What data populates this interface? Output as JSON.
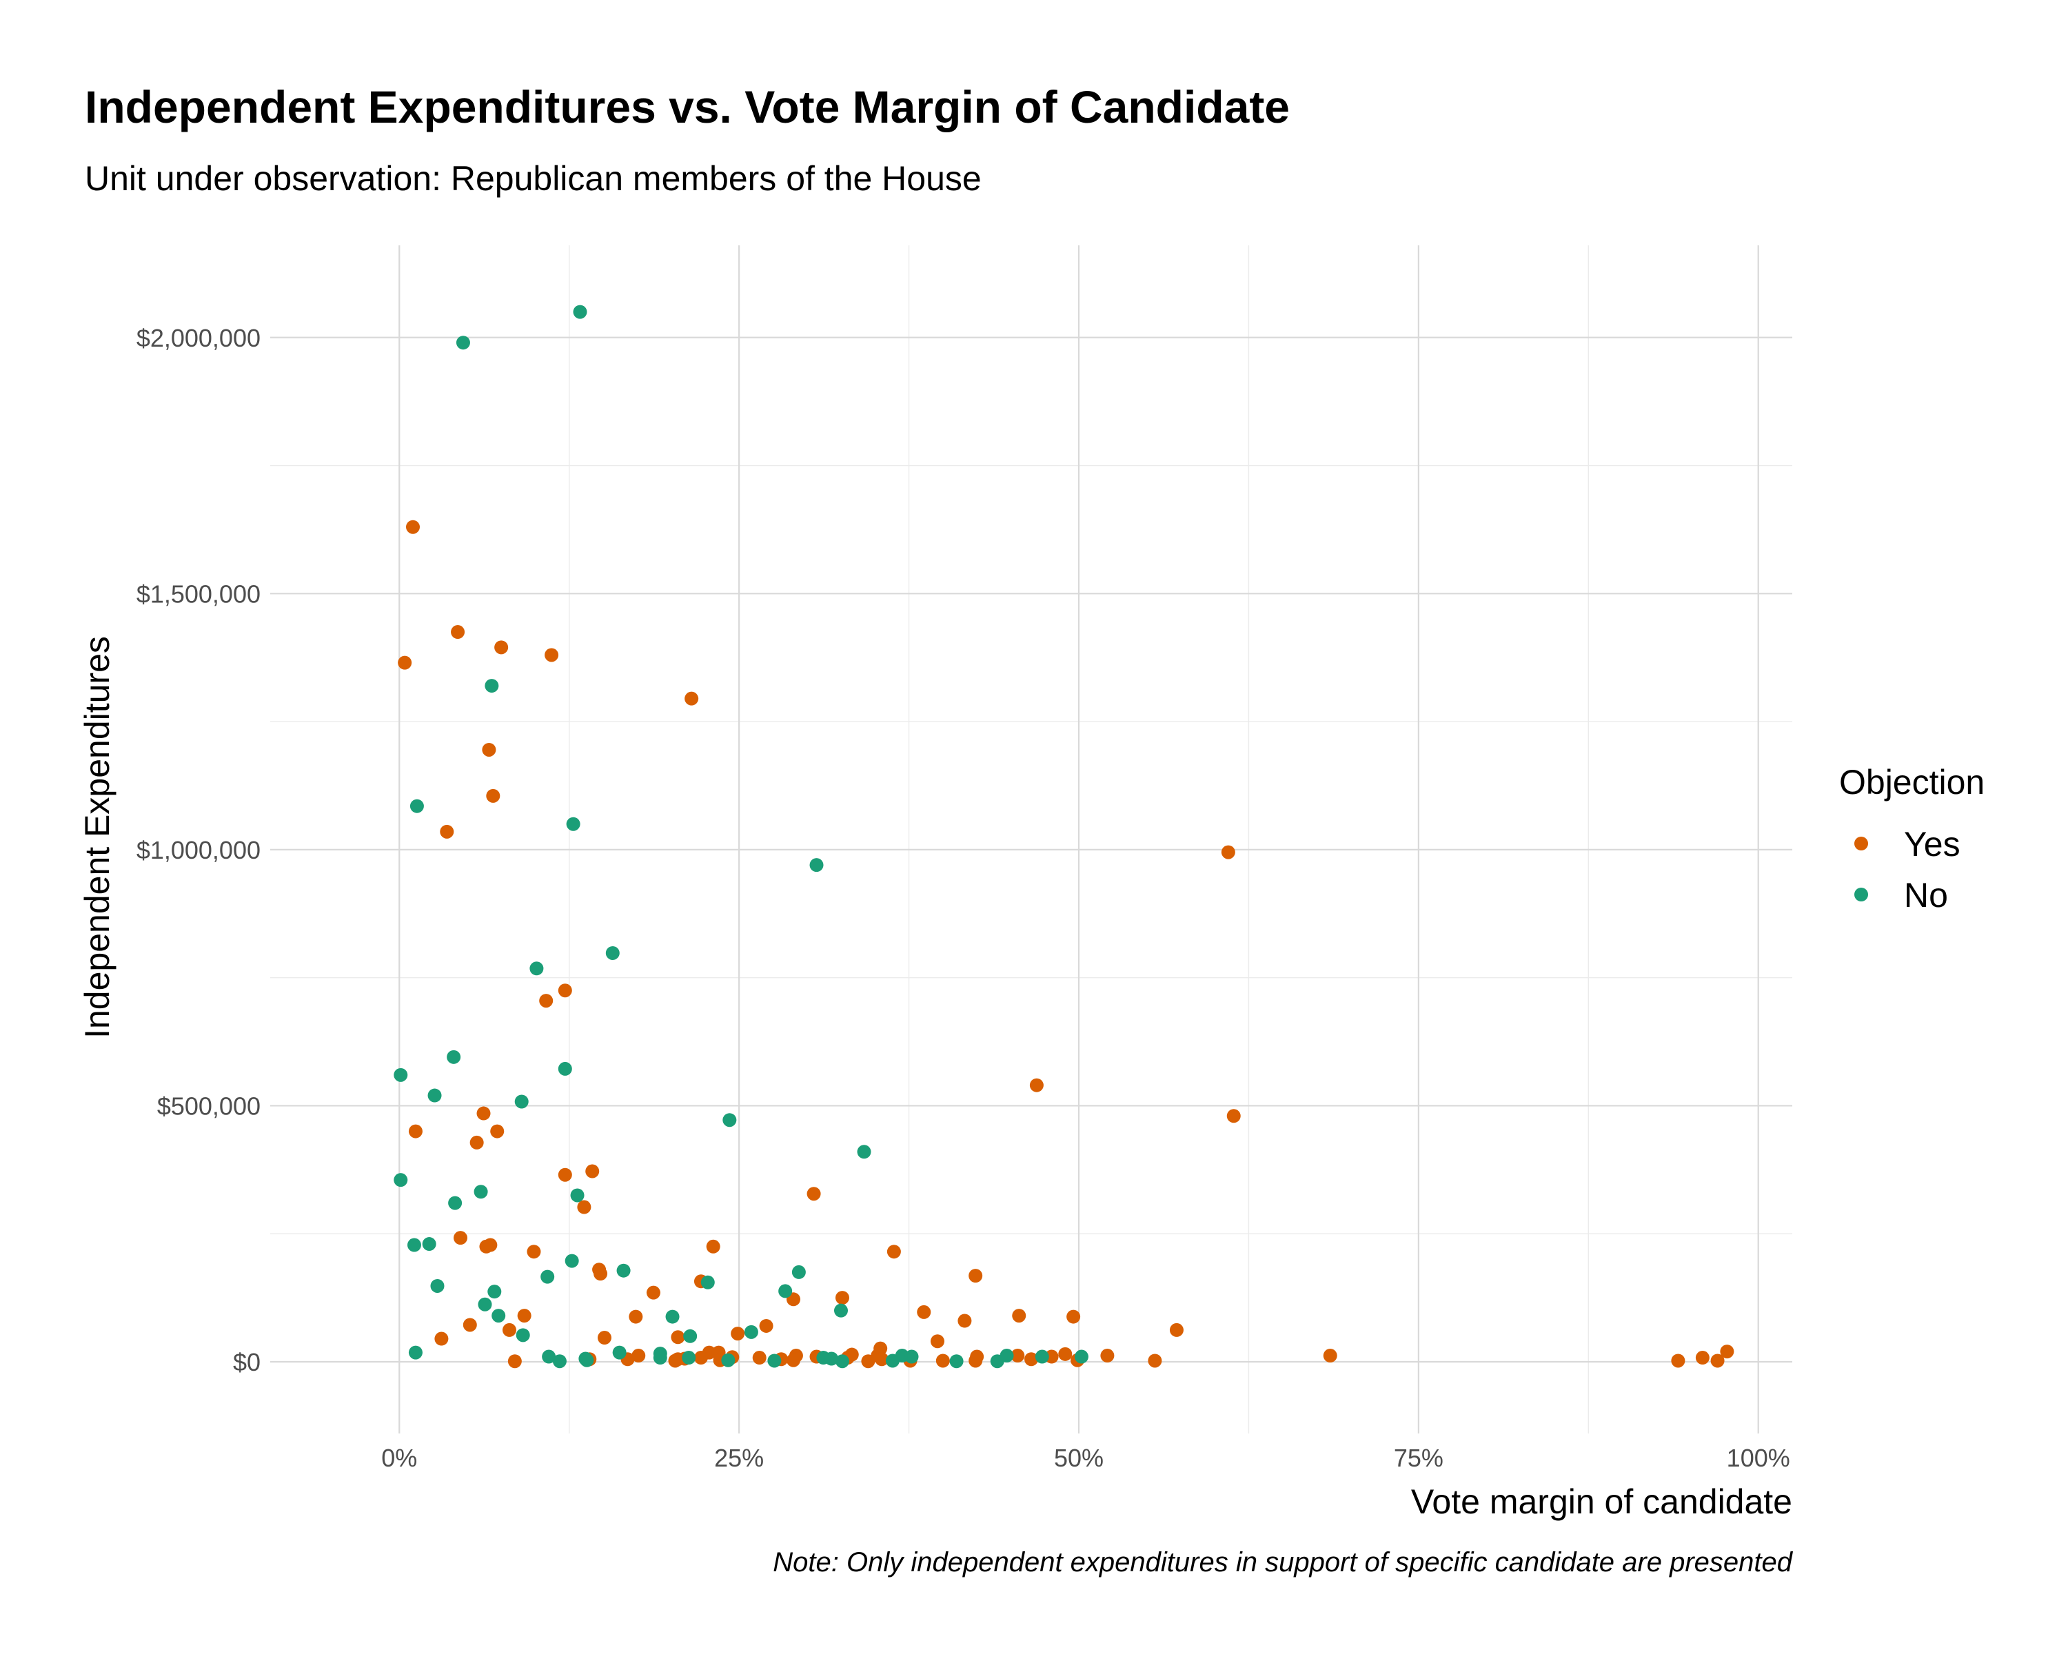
{
  "chart_data": {
    "type": "scatter",
    "title": "Independent Expenditures vs. Vote Margin of Candidate",
    "subtitle": "Unit under observation: Republican members of the House",
    "xlabel": "Vote margin of candidate",
    "ylabel": "Independent Expenditures",
    "caption": "Note: Only independent expenditures in support of specific candidate are presented",
    "xlim": [
      -0.095,
      1.025
    ],
    "ylim": [
      -140000,
      2180000
    ],
    "x_ticks": [
      {
        "value": 0,
        "label": "0%"
      },
      {
        "value": 0.25,
        "label": "25%"
      },
      {
        "value": 0.5,
        "label": "50%"
      },
      {
        "value": 0.75,
        "label": "75%"
      },
      {
        "value": 1.0,
        "label": "100%"
      }
    ],
    "y_ticks": [
      {
        "value": 0,
        "label": "$0"
      },
      {
        "value": 500000,
        "label": "$500,000"
      },
      {
        "value": 1000000,
        "label": "$1,000,000"
      },
      {
        "value": 1500000,
        "label": "$1,500,000"
      },
      {
        "value": 2000000,
        "label": "$2,000,000"
      }
    ],
    "grid": true,
    "legend": {
      "title": "Objection",
      "position": "right"
    },
    "series": [
      {
        "name": "Yes",
        "color": "#d95f02",
        "points": [
          [
            0.01,
            1630000
          ],
          [
            0.004,
            1365000
          ],
          [
            0.043,
            1425000
          ],
          [
            0.075,
            1395000
          ],
          [
            0.112,
            1380000
          ],
          [
            0.215,
            1295000
          ],
          [
            0.066,
            1195000
          ],
          [
            0.069,
            1105000
          ],
          [
            0.035,
            1035000
          ],
          [
            0.61,
            995000
          ],
          [
            0.122,
            725000
          ],
          [
            0.108,
            705000
          ],
          [
            0.469,
            540000
          ],
          [
            0.062,
            485000
          ],
          [
            0.614,
            480000
          ],
          [
            0.012,
            450000
          ],
          [
            0.072,
            450000
          ],
          [
            0.057,
            428000
          ],
          [
            0.142,
            372000
          ],
          [
            0.122,
            365000
          ],
          [
            0.305,
            328000
          ],
          [
            0.136,
            302000
          ],
          [
            0.045,
            242000
          ],
          [
            0.067,
            228000
          ],
          [
            0.064,
            225000
          ],
          [
            0.231,
            225000
          ],
          [
            0.099,
            215000
          ],
          [
            0.364,
            215000
          ],
          [
            0.147,
            180000
          ],
          [
            0.148,
            172000
          ],
          [
            0.424,
            168000
          ],
          [
            0.222,
            157000
          ],
          [
            0.187,
            135000
          ],
          [
            0.326,
            125000
          ],
          [
            0.29,
            122000
          ],
          [
            0.386,
            97000
          ],
          [
            0.092,
            90000
          ],
          [
            0.174,
            88000
          ],
          [
            0.456,
            90000
          ],
          [
            0.496,
            88000
          ],
          [
            0.416,
            80000
          ],
          [
            0.052,
            72000
          ],
          [
            0.27,
            70000
          ],
          [
            0.081,
            62000
          ],
          [
            0.572,
            62000
          ],
          [
            0.249,
            55000
          ],
          [
            0.205,
            48000
          ],
          [
            0.151,
            47000
          ],
          [
            0.031,
            45000
          ],
          [
            0.396,
            40000
          ],
          [
            0.354,
            26000
          ],
          [
            0.977,
            20000
          ],
          [
            0.228,
            18000
          ],
          [
            0.235,
            18000
          ],
          [
            0.292,
            12000
          ],
          [
            0.352,
            12000
          ],
          [
            0.425,
            10000
          ],
          [
            0.455,
            12000
          ],
          [
            0.521,
            12000
          ],
          [
            0.685,
            12000
          ],
          [
            0.959,
            8000
          ],
          [
            0.176,
            12000
          ],
          [
            0.245,
            9000
          ],
          [
            0.333,
            14000
          ],
          [
            0.307,
            10000
          ],
          [
            0.48,
            10000
          ],
          [
            0.49,
            15000
          ],
          [
            0.222,
            8000
          ],
          [
            0.265,
            8000
          ],
          [
            0.14,
            5000
          ],
          [
            0.168,
            5000
          ],
          [
            0.205,
            5000
          ],
          [
            0.236,
            3000
          ],
          [
            0.355,
            5000
          ],
          [
            0.4,
            2000
          ],
          [
            0.465,
            5000
          ],
          [
            0.499,
            3000
          ],
          [
            0.556,
            2000
          ],
          [
            0.941,
            2000
          ],
          [
            0.97,
            2000
          ],
          [
            0.085,
            1000
          ],
          [
            0.29,
            3000
          ],
          [
            0.376,
            2000
          ],
          [
            0.424,
            2000
          ],
          [
            0.345,
            1000
          ],
          [
            0.203,
            2000
          ],
          [
            0.21,
            6000
          ],
          [
            0.281,
            5000
          ],
          [
            0.33,
            8000
          ]
        ]
      },
      {
        "name": "No",
        "color": "#1b9e77",
        "points": [
          [
            0.133,
            2050000
          ],
          [
            0.047,
            1990000
          ],
          [
            0.068,
            1320000
          ],
          [
            0.013,
            1085000
          ],
          [
            0.128,
            1050000
          ],
          [
            0.307,
            970000
          ],
          [
            0.157,
            798000
          ],
          [
            0.101,
            768000
          ],
          [
            0.04,
            595000
          ],
          [
            0.001,
            560000
          ],
          [
            0.122,
            572000
          ],
          [
            0.026,
            520000
          ],
          [
            0.09,
            508000
          ],
          [
            0.243,
            472000
          ],
          [
            0.342,
            410000
          ],
          [
            0.001,
            355000
          ],
          [
            0.06,
            332000
          ],
          [
            0.131,
            325000
          ],
          [
            0.041,
            310000
          ],
          [
            0.011,
            228000
          ],
          [
            0.022,
            230000
          ],
          [
            0.127,
            197000
          ],
          [
            0.165,
            178000
          ],
          [
            0.294,
            175000
          ],
          [
            0.109,
            166000
          ],
          [
            0.227,
            155000
          ],
          [
            0.028,
            148000
          ],
          [
            0.284,
            138000
          ],
          [
            0.07,
            137000
          ],
          [
            0.063,
            112000
          ],
          [
            0.325,
            100000
          ],
          [
            0.073,
            90000
          ],
          [
            0.201,
            88000
          ],
          [
            0.259,
            58000
          ],
          [
            0.091,
            52000
          ],
          [
            0.214,
            50000
          ],
          [
            0.012,
            18000
          ],
          [
            0.162,
            18000
          ],
          [
            0.192,
            16000
          ],
          [
            0.37,
            12000
          ],
          [
            0.377,
            10000
          ],
          [
            0.502,
            10000
          ],
          [
            0.447,
            12000
          ],
          [
            0.473,
            10000
          ],
          [
            0.11,
            10000
          ],
          [
            0.137,
            6000
          ],
          [
            0.192,
            8000
          ],
          [
            0.312,
            8000
          ],
          [
            0.213,
            8000
          ],
          [
            0.318,
            6000
          ],
          [
            0.118,
            1000
          ],
          [
            0.276,
            2000
          ],
          [
            0.326,
            1000
          ],
          [
            0.41,
            1000
          ],
          [
            0.44,
            1000
          ],
          [
            0.363,
            2000
          ],
          [
            0.138,
            3000
          ],
          [
            0.242,
            3000
          ]
        ]
      }
    ]
  }
}
